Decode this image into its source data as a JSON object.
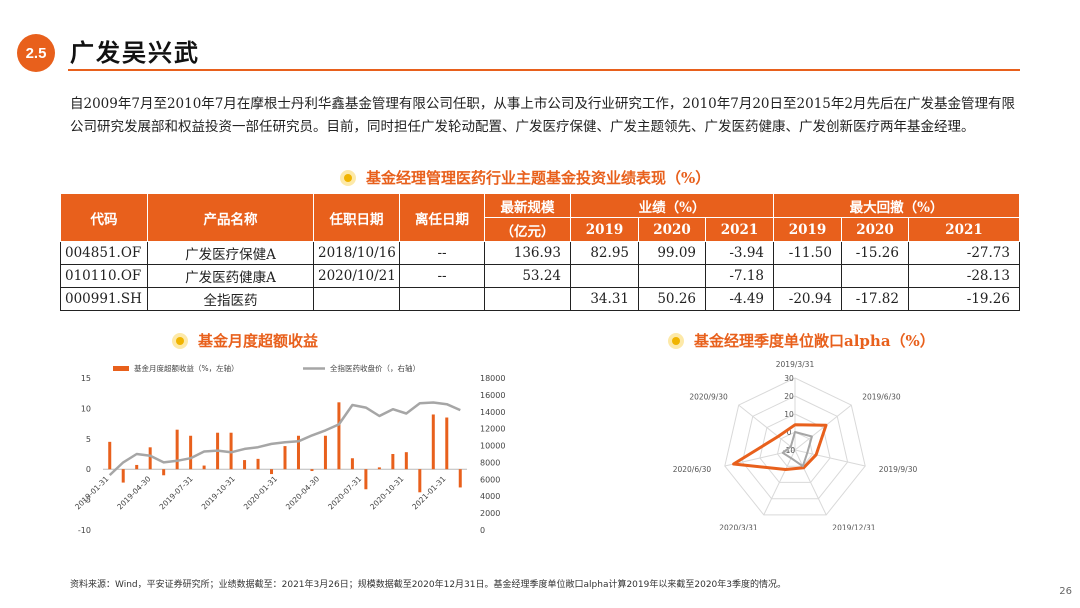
{
  "header": {
    "badge": "2.5",
    "title": "广发吴兴武"
  },
  "intro": "自2009年7月至2010年7月在摩根士丹利华鑫基金管理有限公司任职，从事上市公司及行业研究工作，2010年7月20日至2015年2月先后在广发基金管理有限公司研究发展部和权益投资一部任研究员。目前，同时担任广发轮动配置、广发医疗保健、广发主题领先、广发医药健康、广发创新医疗两年基金经理。",
  "table_section": {
    "title": "基金经理管理医药行业主题基金投资业绩表现（%）"
  },
  "table": {
    "headers": {
      "code": "代码",
      "name": "产品名称",
      "start": "任职日期",
      "end": "离任日期",
      "scale": "最新规模",
      "scale_unit": "（亿元）",
      "perf": "业绩（%）",
      "drawdown": "最大回撤（%）"
    },
    "years": [
      "2019",
      "2020",
      "2021"
    ],
    "rows": [
      {
        "code": "004851.OF",
        "name": "广发医疗保健A",
        "start": "2018/10/16",
        "end": "--",
        "scale": "136.93",
        "perf": [
          "82.95",
          "99.09",
          "-3.94"
        ],
        "dd": [
          "-11.50",
          "-15.26",
          "-27.73"
        ]
      },
      {
        "code": "010110.OF",
        "name": "广发医药健康A",
        "start": "2020/10/21",
        "end": "--",
        "scale": "53.24",
        "perf": [
          "",
          "",
          "-7.18"
        ],
        "dd": [
          "",
          "",
          "-28.13"
        ]
      },
      {
        "code": "000991.SH",
        "name": "全指医药",
        "start": "",
        "end": "",
        "scale": "",
        "perf": [
          "34.31",
          "50.26",
          "-4.49"
        ],
        "dd": [
          "-20.94",
          "-17.82",
          "-19.26"
        ]
      }
    ]
  },
  "left_section": {
    "title": "基金月度超额收益"
  },
  "right_section": {
    "title": "基金经理季度单位敞口alpha（%）"
  },
  "footnote": "资料来源：Wind，平安证券研究所；业绩数据截至：2021年3月26日；规模数据截至2020年12月31日。基金经理季度单位敞口alpha计算2019年以来截至2020年3季度的情况。",
  "page_number": "26",
  "colors": {
    "accent": "#e8601c",
    "bar": "#e8601c",
    "line": "#a6a6a6",
    "radar_outer": "#e8601c",
    "radar_inner": "#a6a6a6"
  },
  "chart_data": [
    {
      "type": "bar",
      "legend": [
        "基金月度超额收益（%，左轴）",
        "全指医药收盘价（，右轴）"
      ],
      "x_ticks": [
        "2019-01-31",
        "2019-04-30",
        "2019-07-31",
        "2019-10-31",
        "2020-01-31",
        "2020-04-30",
        "2020-07-31",
        "2020-10-31",
        "2021-01-31"
      ],
      "ylim": [
        -10,
        15
      ],
      "y_ticks": [
        "15",
        "10",
        "5",
        "0",
        "-5",
        "-10"
      ],
      "y2lim": [
        0,
        18000
      ],
      "y2_ticks": [
        "18000",
        "16000",
        "14000",
        "12000",
        "10000",
        "8000",
        "6000",
        "4000",
        "2000",
        "0"
      ],
      "series": [
        {
          "name": "基金月度超额收益（%，左轴）",
          "type": "bar",
          "values": [
            4.5,
            -2.2,
            0.7,
            3.6,
            -1,
            6.5,
            5.5,
            0.6,
            6,
            6,
            1.5,
            1.7,
            -0.8,
            3.8,
            5.5,
            -0.3,
            5.5,
            11,
            1.8,
            -3.3,
            0.3,
            2.5,
            2.8,
            -3.8,
            9,
            8.5,
            -3
          ]
        },
        {
          "name": "全指医药收盘价（，右轴）",
          "type": "line",
          "values": [
            6500,
            8000,
            9000,
            8800,
            8000,
            8200,
            8500,
            9300,
            9400,
            9200,
            9600,
            9800,
            10200,
            10400,
            10500,
            11200,
            11800,
            12500,
            14800,
            14500,
            13500,
            14300,
            13800,
            15000,
            15100,
            14900,
            14200
          ]
        }
      ]
    },
    {
      "type": "radar",
      "axes": [
        "2019/3/31",
        "2019/6/30",
        "2019/9/30",
        "2019/12/31",
        "2020/3/31",
        "2020/6/30",
        "2020/9/30"
      ],
      "r_ticks": [
        "30",
        "20",
        "10",
        "0",
        "-10"
      ],
      "rlim": [
        -10,
        30
      ],
      "series": [
        {
          "name": "outer",
          "values": [
            4,
            12,
            2,
            1,
            2,
            25,
            2
          ]
        },
        {
          "name": "inner",
          "values": [
            0,
            2,
            -3,
            0,
            -5,
            -3,
            -7
          ]
        }
      ]
    }
  ]
}
